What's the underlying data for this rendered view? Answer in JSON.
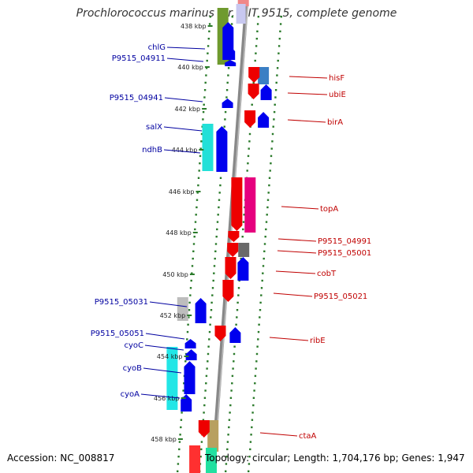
{
  "title": "Prochlorococcus marinus str. MIT 9515, complete genome",
  "footer": {
    "accession": "Accession: NC_008817",
    "topology": "Topology: circular; Length: 1,704,176 bp; Genes: 1,947"
  },
  "colors": {
    "forward": "#0000ee",
    "reverse": "#ee0000",
    "backbone": "#888888",
    "dots": "#2a7a2a",
    "label_forward": "#0000a0",
    "label_reverse": "#c00000"
  },
  "ticks": [
    "438 kbp",
    "440 kbp",
    "442 kbp",
    "444 kbp",
    "446 kbp",
    "448 kbp",
    "450 kbp",
    "452 kbp",
    "454 kbp",
    "456 kbp",
    "458 kbp"
  ],
  "genes_left": [
    "chlG",
    "P9515_04911",
    "P9515_04941",
    "salX",
    "ndhB",
    "P9515_05031",
    "P9515_05051",
    "cyoC",
    "cyoB",
    "cyoA"
  ],
  "genes_right": [
    "hisF",
    "ubiE",
    "birA",
    "topA",
    "P9515_04991",
    "P9515_05001",
    "cobT",
    "P9515_05021",
    "ribE",
    "ctaA"
  ]
}
